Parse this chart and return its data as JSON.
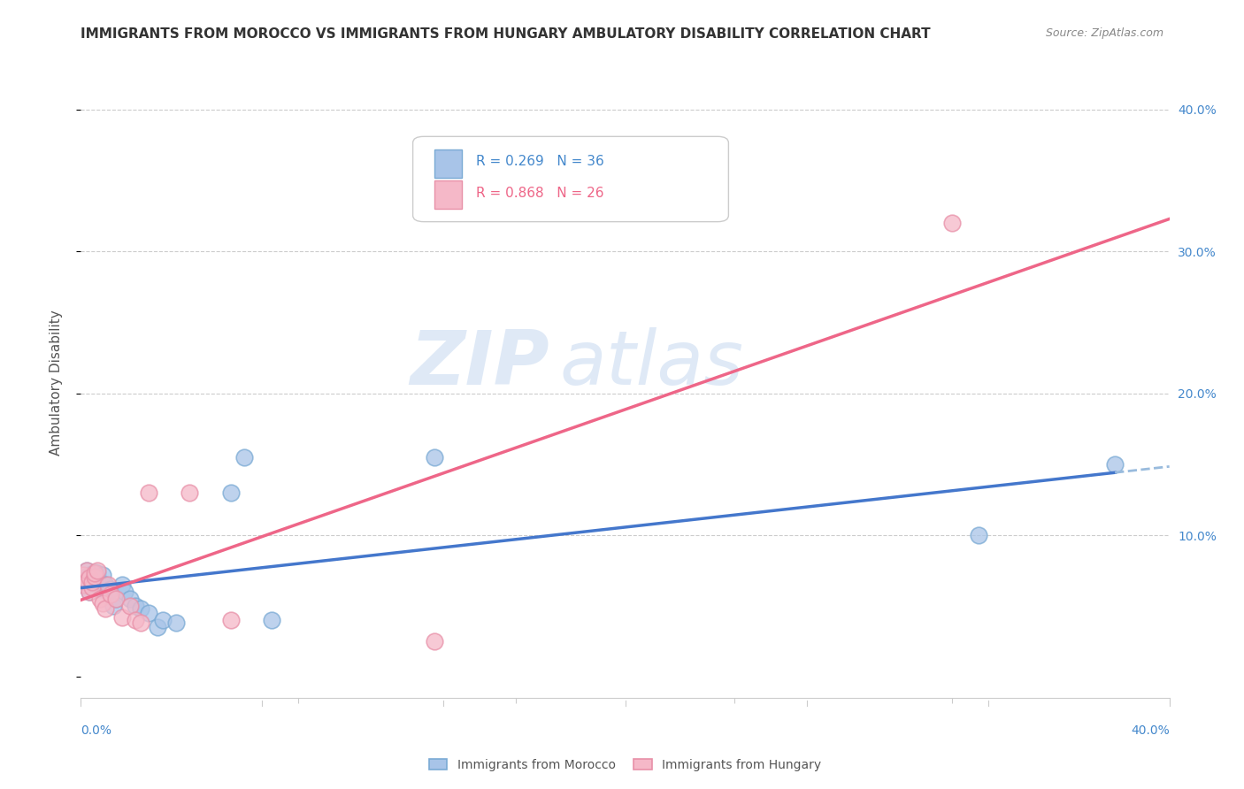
{
  "title": "IMMIGRANTS FROM MOROCCO VS IMMIGRANTS FROM HUNGARY AMBULATORY DISABILITY CORRELATION CHART",
  "source": "Source: ZipAtlas.com",
  "ylabel": "Ambulatory Disability",
  "xlim": [
    0.0,
    0.4
  ],
  "ylim": [
    -0.015,
    0.43
  ],
  "morocco_color": "#a8c4e8",
  "morocco_edge_color": "#7aaad4",
  "hungary_color": "#f5b8c8",
  "hungary_edge_color": "#e890a8",
  "line_morocco_color": "#4477cc",
  "line_morocco_dash_color": "#99bbdd",
  "line_hungary_color": "#ee6688",
  "morocco_R": 0.269,
  "morocco_N": 36,
  "hungary_R": 0.868,
  "hungary_N": 26,
  "morocco_scatter_x": [
    0.001,
    0.001,
    0.002,
    0.002,
    0.003,
    0.003,
    0.004,
    0.004,
    0.005,
    0.005,
    0.005,
    0.006,
    0.006,
    0.007,
    0.007,
    0.008,
    0.009,
    0.01,
    0.011,
    0.012,
    0.013,
    0.015,
    0.016,
    0.018,
    0.02,
    0.022,
    0.025,
    0.028,
    0.03,
    0.035,
    0.055,
    0.06,
    0.07,
    0.13,
    0.33,
    0.38
  ],
  "morocco_scatter_y": [
    0.065,
    0.07,
    0.068,
    0.075,
    0.06,
    0.072,
    0.063,
    0.066,
    0.069,
    0.071,
    0.074,
    0.068,
    0.073,
    0.067,
    0.062,
    0.072,
    0.065,
    0.06,
    0.062,
    0.05,
    0.055,
    0.065,
    0.06,
    0.055,
    0.05,
    0.048,
    0.045,
    0.035,
    0.04,
    0.038,
    0.13,
    0.155,
    0.04,
    0.155,
    0.1,
    0.15
  ],
  "hungary_scatter_x": [
    0.001,
    0.001,
    0.002,
    0.002,
    0.003,
    0.003,
    0.004,
    0.004,
    0.005,
    0.005,
    0.006,
    0.007,
    0.008,
    0.009,
    0.01,
    0.011,
    0.013,
    0.015,
    0.018,
    0.02,
    0.022,
    0.025,
    0.04,
    0.055,
    0.13,
    0.32
  ],
  "hungary_scatter_y": [
    0.072,
    0.065,
    0.068,
    0.075,
    0.06,
    0.07,
    0.063,
    0.067,
    0.071,
    0.073,
    0.075,
    0.055,
    0.052,
    0.048,
    0.065,
    0.058,
    0.055,
    0.042,
    0.05,
    0.04,
    0.038,
    0.13,
    0.13,
    0.04,
    0.025,
    0.32
  ],
  "watermark_line1": "ZIP",
  "watermark_line2": "atlas",
  "background_color": "#ffffff",
  "grid_color": "#cccccc",
  "title_color": "#333333",
  "axis_tick_color": "#4488cc",
  "ylabel_color": "#555555",
  "source_color": "#888888",
  "legend_label_color": "#4488cc",
  "marker_size": 180
}
